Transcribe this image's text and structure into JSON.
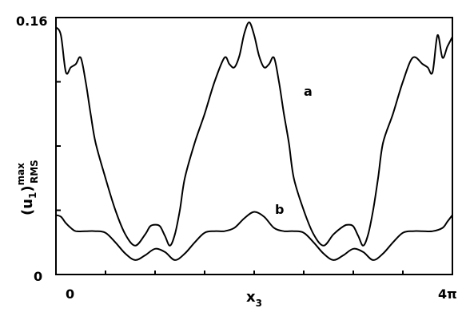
{
  "chart_data": {
    "type": "line",
    "title": "",
    "xlabel": "x",
    "xlabel_sub": "3",
    "ylabel_main": "(u",
    "ylabel_sub1": "1",
    "ylabel_close": ")",
    "ylabel_sup": "max",
    "ylabel_sub2": "RMS",
    "xlim": [
      0,
      4
    ],
    "ylim": [
      0,
      0.16
    ],
    "x_unit": "π",
    "y_tick_labels": [
      "0",
      "0.16"
    ],
    "x_tick_labels": [
      "0",
      "4π"
    ],
    "x_minor_ticks": [
      0.5,
      1,
      1.5,
      2,
      2.5,
      3,
      3.5
    ],
    "y_minor_ticks": [
      0.04,
      0.08,
      0.12
    ],
    "grid": false,
    "series": [
      {
        "name": "a",
        "x": [
          0,
          0.05,
          0.1,
          0.15,
          0.2,
          0.25,
          0.3,
          0.35,
          0.4,
          0.5,
          0.6,
          0.7,
          0.8,
          0.9,
          0.95,
          1.0,
          1.05,
          1.1,
          1.15,
          1.2,
          1.25,
          1.3,
          1.4,
          1.5,
          1.6,
          1.7,
          1.75,
          1.8,
          1.85,
          1.9,
          1.95,
          2.0,
          2.05,
          2.1,
          2.15,
          2.2,
          2.25,
          2.3,
          2.35,
          2.4,
          2.5,
          2.6,
          2.7,
          2.8,
          2.9,
          2.95,
          3.0,
          3.05,
          3.1,
          3.15,
          3.2,
          3.25,
          3.3,
          3.4,
          3.5,
          3.6,
          3.7,
          3.75,
          3.8,
          3.85,
          3.9,
          3.95,
          4.0
        ],
        "y": [
          0.154,
          0.149,
          0.126,
          0.129,
          0.131,
          0.135,
          0.12,
          0.1,
          0.082,
          0.06,
          0.04,
          0.025,
          0.018,
          0.025,
          0.03,
          0.031,
          0.03,
          0.024,
          0.018,
          0.025,
          0.04,
          0.06,
          0.082,
          0.1,
          0.12,
          0.135,
          0.131,
          0.129,
          0.136,
          0.15,
          0.157,
          0.149,
          0.136,
          0.129,
          0.131,
          0.135,
          0.12,
          0.1,
          0.082,
          0.06,
          0.04,
          0.025,
          0.018,
          0.025,
          0.03,
          0.031,
          0.03,
          0.024,
          0.018,
          0.025,
          0.04,
          0.06,
          0.082,
          0.1,
          0.12,
          0.135,
          0.131,
          0.129,
          0.126,
          0.149,
          0.135,
          0.142,
          0.148
        ]
      },
      {
        "name": "b",
        "x": [
          0,
          0.05,
          0.1,
          0.15,
          0.2,
          0.3,
          0.4,
          0.5,
          0.6,
          0.7,
          0.8,
          0.9,
          1.0,
          1.1,
          1.2,
          1.3,
          1.4,
          1.5,
          1.6,
          1.7,
          1.8,
          1.9,
          2.0,
          2.1,
          2.2,
          2.3,
          2.4,
          2.5,
          2.6,
          2.7,
          2.8,
          2.9,
          3.0,
          3.1,
          3.2,
          3.3,
          3.4,
          3.5,
          3.6,
          3.7,
          3.8,
          3.9,
          3.95,
          4.0
        ],
        "y": [
          0.037,
          0.036,
          0.032,
          0.029,
          0.027,
          0.027,
          0.027,
          0.026,
          0.02,
          0.013,
          0.009,
          0.012,
          0.016,
          0.014,
          0.009,
          0.013,
          0.02,
          0.026,
          0.027,
          0.027,
          0.029,
          0.035,
          0.039,
          0.036,
          0.029,
          0.027,
          0.027,
          0.026,
          0.02,
          0.013,
          0.009,
          0.012,
          0.016,
          0.014,
          0.009,
          0.013,
          0.02,
          0.026,
          0.027,
          0.027,
          0.027,
          0.029,
          0.033,
          0.037
        ]
      }
    ],
    "curve_labels": [
      "a",
      "b"
    ]
  }
}
